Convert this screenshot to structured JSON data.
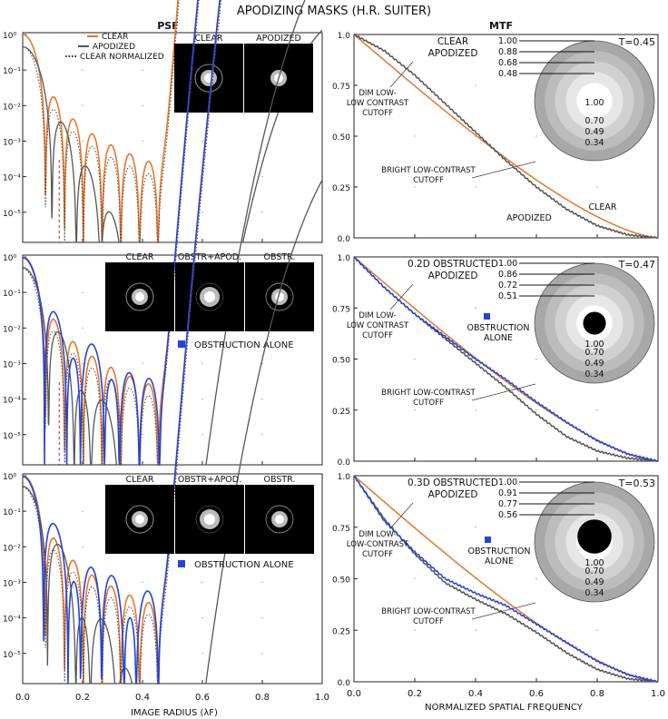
{
  "title": "APODIZING MASKS (H.R. SUITER)",
  "col_titles": {
    "left": "PSF",
    "right": "MTF"
  },
  "axes": {
    "psf_xlabel": "IMAGE RADIUS  (λF)",
    "mtf_xlabel": "NORMALIZED SPATIAL FREQUENCY",
    "x_ticks": [
      "0.0",
      "0.2",
      "0.4",
      "0.6",
      "0.8",
      "1.0"
    ],
    "psf_yticks": [
      "10⁰",
      "10⁻¹",
      "10⁻²",
      "10⁻³",
      "10⁻⁴",
      "10⁻⁵"
    ],
    "mtf_yticks": [
      "1.0",
      "0.75",
      "0.50",
      "0.25",
      "0.0"
    ]
  },
  "colors": {
    "clear": "#e8762a",
    "apodized": "#555555",
    "obstructed": "#2244dd",
    "dashed_marker": "#cc2222",
    "ring_colors": [
      "#a8a8a8",
      "#bcbcbc",
      "#d0d0d0",
      "#e6e6e6"
    ]
  },
  "rows": [
    {
      "psf": {
        "legend": [
          "CLEAR",
          "APODIZED",
          "CLEAR NORMALIZED"
        ],
        "thumbnails": [
          "CLEAR",
          "APODIZED"
        ],
        "obstruction_label": ""
      },
      "mtf": {
        "heading": [
          "CLEAR",
          "APODIZED"
        ],
        "transmission": "T=0.45",
        "ring_values": [
          "1.00",
          "0.88",
          "0.68",
          "0.48"
        ],
        "center_values": [
          "1.00",
          "0.70",
          "0.49",
          "0.34"
        ],
        "obstruction": 0,
        "dim_label": [
          "DIM LOW-",
          "LOW CONTRAST",
          "CUTOFF"
        ],
        "bright_label": [
          "BRIGHT LOW-CONTRAST",
          "CUTOFF"
        ],
        "curve_labels": [
          "CLEAR",
          "APODIZED"
        ],
        "obstruction_alone": []
      }
    },
    {
      "psf": {
        "legend": [],
        "thumbnails": [
          "CLEAR",
          "OBSTR+APOD.",
          "OBSTR."
        ],
        "obstruction_label": "OBSTRUCTION ALONE"
      },
      "mtf": {
        "heading": [
          "0.2D  OBSTRUCTED",
          "APODIZED"
        ],
        "transmission": "T=0.47",
        "ring_values": [
          "1.00",
          "0.86",
          "0.72",
          "0.51"
        ],
        "center_values": [
          "1.00",
          "0.70",
          "0.49",
          "0.34"
        ],
        "obstruction": 0.2,
        "dim_label": [
          "DIM LOW-",
          "LOW CONTRAST",
          "CUTOFF"
        ],
        "bright_label": [
          "BRIGHT LOW-CONTRAST",
          "CUTOFF"
        ],
        "curve_labels": [],
        "obstruction_alone": [
          "OBSTRUCTION",
          "ALONE"
        ]
      }
    },
    {
      "psf": {
        "legend": [],
        "thumbnails": [
          "CLEAR",
          "OBSTR+APOD.",
          "OBSTR."
        ],
        "obstruction_label": "OBSTRUCTION ALONE"
      },
      "mtf": {
        "heading": [
          "0.3D OBSTRUCTED",
          "APODIZED"
        ],
        "transmission": "T=0.53",
        "ring_values": [
          "1.00",
          "0.91",
          "0.77",
          "0.56"
        ],
        "center_values": [
          "1.00",
          "0.70",
          "0.49",
          "0.34"
        ],
        "obstruction": 0.3,
        "dim_label": [
          "DIM LOW-",
          "LOW-CONTRAST",
          "CUTOFF"
        ],
        "bright_label": [
          "BRIGHT LOW-CONTRAST",
          "CUTOFF"
        ],
        "curve_labels": [],
        "obstruction_alone": [
          "OBSTRUCTION",
          "ALONE"
        ]
      }
    }
  ],
  "chart_data": [
    {
      "type": "line",
      "title": "PSF (clear aperture)",
      "xlabel": "IMAGE RADIUS (λF)",
      "yscale": "log",
      "xlim": [
        0,
        1.0
      ],
      "ylim": [
        1e-06,
        1
      ],
      "series": [
        {
          "name": "CLEAR",
          "first_minimum": 0.122,
          "ring_spacing": 0.1,
          "peak_levels": [
            1,
            0.0175,
            0.0042,
            0.0016,
            0.00078,
            0.00044,
            0.00027,
            0.00018,
            0.00013,
            0.0001
          ]
        },
        {
          "name": "APODIZED",
          "first_minimum": 0.163,
          "ring_spacing": 0.1,
          "peak_levels": [
            0.45,
            0.0009,
            0.00021,
            0.00011,
            7e-05,
            6e-05,
            4.5e-05,
            4e-05,
            3.5e-05
          ]
        },
        {
          "name": "CLEAR NORMALIZED",
          "first_minimum": 0.122,
          "ring_spacing": 0.1,
          "peak_levels": [
            0.45,
            0.0079,
            0.0019,
            0.00072,
            0.00035,
            0.0002,
            0.00012,
            8e-05,
            6e-05,
            4.5e-05
          ]
        }
      ]
    },
    {
      "type": "line",
      "title": "PSF (0.2D obstructed)",
      "xlabel": "IMAGE RADIUS (λF)",
      "yscale": "log",
      "xlim": [
        0,
        1.0
      ],
      "ylim": [
        1e-06,
        1
      ],
      "series": [
        {
          "name": "CLEAR",
          "peak_levels": [
            1,
            0.02,
            0.005,
            0.0018,
            0.0009,
            0.0005,
            0.0003,
            0.0002,
            0.00015,
            0.0001
          ]
        },
        {
          "name": "OBSTR+APOD.",
          "peak_levels": [
            0.47,
            0.0026,
            0.0005,
            0.00025,
            0.00015,
            0.0001,
            8e-05,
            6e-05
          ]
        },
        {
          "name": "OBSTRUCTION ALONE",
          "peak_levels": [
            0.96,
            0.03,
            0.006,
            0.003,
            0.0015,
            0.0007,
            0.0004,
            0.00025,
            0.00015
          ]
        }
      ]
    },
    {
      "type": "line",
      "title": "PSF (0.3D obstructed)",
      "xlabel": "IMAGE RADIUS (λF)",
      "yscale": "log",
      "xlim": [
        0,
        1.0
      ],
      "ylim": [
        1e-06,
        1
      ],
      "series": [
        {
          "name": "CLEAR",
          "peak_levels": [
            1,
            0.04,
            0.01,
            0.004,
            0.0017,
            0.0009,
            0.0005,
            0.0003,
            0.0002,
            0.00012
          ]
        },
        {
          "name": "OBSTR+APOD.",
          "peak_levels": [
            0.53,
            0.012,
            0.003,
            0.0012,
            0.0004,
            0.0002,
            0.00012,
            8e-05
          ]
        },
        {
          "name": "OBSTRUCTION ALONE",
          "peak_levels": [
            0.92,
            0.05,
            0.012,
            0.0045,
            0.002,
            0.001,
            0.0006,
            0.0004,
            0.0002
          ]
        }
      ]
    },
    {
      "type": "line",
      "title": "MTF (clear aperture)",
      "xlabel": "NORMALIZED SPATIAL FREQUENCY",
      "xlim": [
        0,
        1.0
      ],
      "ylim": [
        0,
        1.0
      ],
      "series": [
        {
          "name": "CLEAR",
          "x": [
            0,
            0.1,
            0.2,
            0.3,
            0.4,
            0.5,
            0.6,
            0.7,
            0.8,
            0.9,
            1.0
          ],
          "y": [
            1.0,
            0.873,
            0.747,
            0.624,
            0.505,
            0.391,
            0.285,
            0.188,
            0.104,
            0.037,
            0.0
          ]
        },
        {
          "name": "APODIZED",
          "x": [
            0,
            0.1,
            0.2,
            0.3,
            0.4,
            0.5,
            0.6,
            0.7,
            0.8,
            0.9,
            1.0
          ],
          "y": [
            1.0,
            0.92,
            0.8,
            0.66,
            0.52,
            0.38,
            0.25,
            0.14,
            0.06,
            0.015,
            0.0
          ]
        }
      ]
    },
    {
      "type": "line",
      "title": "MTF (0.2D obstructed)",
      "xlabel": "NORMALIZED SPATIAL FREQUENCY",
      "xlim": [
        0,
        1.0
      ],
      "ylim": [
        0,
        1.0
      ],
      "series": [
        {
          "name": "CLEAR",
          "x": [
            0,
            0.1,
            0.2,
            0.3,
            0.4,
            0.5,
            0.6,
            0.7,
            0.8,
            0.9,
            1.0
          ],
          "y": [
            1.0,
            0.873,
            0.747,
            0.624,
            0.505,
            0.391,
            0.285,
            0.188,
            0.104,
            0.037,
            0.0
          ]
        },
        {
          "name": "OBSTR+APOD.",
          "x": [
            0,
            0.1,
            0.2,
            0.3,
            0.4,
            0.5,
            0.6,
            0.7,
            0.8,
            0.9,
            1.0
          ],
          "y": [
            1.0,
            0.85,
            0.72,
            0.6,
            0.48,
            0.36,
            0.23,
            0.12,
            0.05,
            0.015,
            0.0
          ]
        },
        {
          "name": "OBSTRUCTION ALONE",
          "x": [
            0,
            0.1,
            0.2,
            0.3,
            0.4,
            0.5,
            0.6,
            0.7,
            0.8,
            0.9,
            1.0
          ],
          "y": [
            1.0,
            0.85,
            0.72,
            0.61,
            0.5,
            0.4,
            0.29,
            0.19,
            0.1,
            0.035,
            0.0
          ]
        }
      ]
    },
    {
      "type": "line",
      "title": "MTF (0.3D obstructed)",
      "xlabel": "NORMALIZED SPATIAL FREQUENCY",
      "xlim": [
        0,
        1.0
      ],
      "ylim": [
        0,
        1.0
      ],
      "series": [
        {
          "name": "CLEAR",
          "x": [
            0,
            0.1,
            0.2,
            0.3,
            0.4,
            0.5,
            0.6,
            0.7,
            0.8,
            0.9,
            1.0
          ],
          "y": [
            1.0,
            0.873,
            0.747,
            0.624,
            0.505,
            0.391,
            0.285,
            0.188,
            0.104,
            0.037,
            0.0
          ]
        },
        {
          "name": "OBSTR+APOD.",
          "x": [
            0,
            0.1,
            0.2,
            0.3,
            0.4,
            0.5,
            0.6,
            0.7,
            0.8,
            0.9,
            1.0
          ],
          "y": [
            1.0,
            0.79,
            0.62,
            0.48,
            0.4,
            0.33,
            0.24,
            0.14,
            0.06,
            0.015,
            0.0
          ]
        },
        {
          "name": "OBSTRUCTION ALONE",
          "x": [
            0,
            0.1,
            0.2,
            0.3,
            0.4,
            0.5,
            0.6,
            0.7,
            0.8,
            0.9,
            1.0
          ],
          "y": [
            1.0,
            0.78,
            0.63,
            0.5,
            0.43,
            0.37,
            0.28,
            0.19,
            0.1,
            0.035,
            0.0
          ]
        }
      ]
    }
  ]
}
